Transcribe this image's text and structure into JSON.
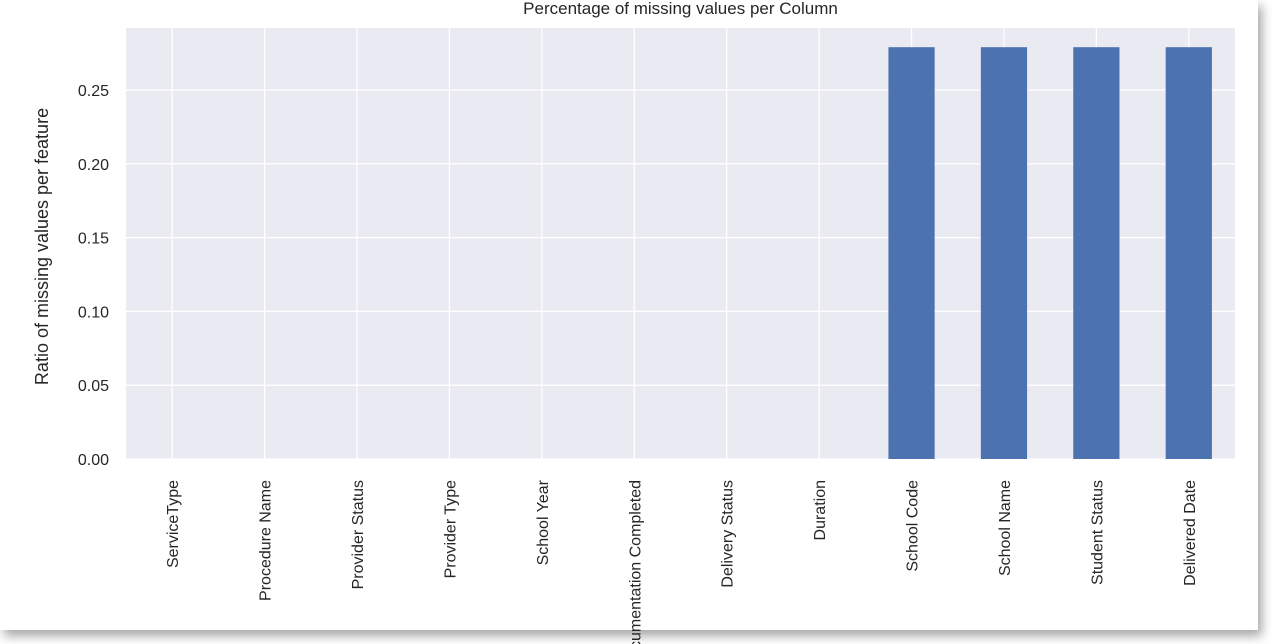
{
  "chart_data": {
    "type": "bar",
    "title": "Percentage of missing values per Column",
    "xlabel": "",
    "ylabel": "Ratio of missing values per feature",
    "categories": [
      "ServiceType",
      "Procedure Name",
      "Provider Status",
      "Provider Type",
      "School Year",
      "Documentation Completed",
      "Delivery Status",
      "Duration",
      "School Code",
      "School Name",
      "Student Status",
      "Delivered Date"
    ],
    "values": [
      0,
      0,
      0,
      0,
      0,
      0,
      0,
      0,
      0.279,
      0.279,
      0.279,
      0.279
    ],
    "ylim": [
      0,
      0.292
    ],
    "yticks": [
      "0.00",
      "0.05",
      "0.10",
      "0.15",
      "0.20",
      "0.25"
    ],
    "ytick_values": [
      0,
      0.05,
      0.1,
      0.15,
      0.2,
      0.25
    ],
    "grid": true,
    "colors": {
      "bar": "#4c72b0",
      "plot_background": "#eaeaf2",
      "grid": "#ffffff",
      "text": "#262626"
    }
  }
}
